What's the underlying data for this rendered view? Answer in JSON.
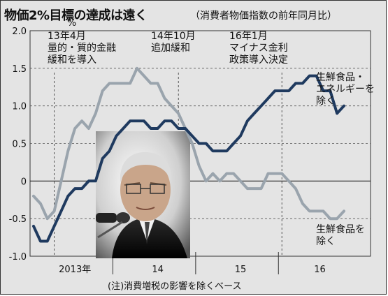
{
  "title": "物価2%目標の達成は遠く",
  "subtitle": "（消費者物価指数の前年同月比）",
  "unit": "%",
  "note": "(注)消費増税の影響を除くベース",
  "annotations": {
    "a2013": [
      "13年4月",
      "量的・質的金融",
      "緩和を導入"
    ],
    "a2014": [
      "14年10月",
      "追加緩和"
    ],
    "a2016": [
      "16年1月",
      "マイナス金利",
      "政策導入決定"
    ]
  },
  "colors": {
    "background": "#e4e4e4",
    "core": "#1f3a5f",
    "headline": "#9aa4ad"
  },
  "photo": "portrait-photo",
  "chart_data": {
    "type": "line",
    "ylim": [
      -1.0,
      2.0
    ],
    "yticks": [
      "2.0",
      "1.5",
      "1.0",
      "0.5",
      "0",
      "-0.5",
      "-1.0"
    ],
    "ytick_values": [
      2.0,
      1.5,
      1.0,
      0.5,
      0,
      -0.5,
      -1.0
    ],
    "xticks": [
      "2013年",
      "14",
      "15",
      "16"
    ],
    "grid": "horizontal dashed at 0.5 steps, solid zero line",
    "events": [
      "2013-04",
      "2014-10",
      "2016-01"
    ],
    "x": [
      "2013-01",
      "2013-02",
      "2013-03",
      "2013-04",
      "2013-05",
      "2013-06",
      "2013-07",
      "2013-08",
      "2013-09",
      "2013-10",
      "2013-11",
      "2013-12",
      "2014-01",
      "2014-02",
      "2014-03",
      "2014-04",
      "2014-05",
      "2014-06",
      "2014-07",
      "2014-08",
      "2014-09",
      "2014-10",
      "2014-11",
      "2014-12",
      "2015-01",
      "2015-02",
      "2015-03",
      "2015-04",
      "2015-05",
      "2015-06",
      "2015-07",
      "2015-08",
      "2015-09",
      "2015-10",
      "2015-11",
      "2015-12",
      "2016-01",
      "2016-02",
      "2016-03",
      "2016-04",
      "2016-05",
      "2016-06",
      "2016-07",
      "2016-08",
      "2016-09",
      "2016-10"
    ],
    "series": [
      {
        "name": "生鮮食品・エネルギーを除く",
        "values": [
          -0.6,
          -0.8,
          -0.8,
          -0.6,
          -0.4,
          -0.2,
          -0.1,
          -0.1,
          0.0,
          0.0,
          0.3,
          0.4,
          0.6,
          0.7,
          0.8,
          0.8,
          0.8,
          0.7,
          0.7,
          0.8,
          0.8,
          0.7,
          0.7,
          0.6,
          0.5,
          0.5,
          0.4,
          0.4,
          0.4,
          0.5,
          0.6,
          0.8,
          0.9,
          1.0,
          1.1,
          1.2,
          1.2,
          1.2,
          1.3,
          1.3,
          1.4,
          1.4,
          1.2,
          1.2,
          0.9,
          1.0
        ]
      },
      {
        "name": "生鮮食品を除く",
        "values": [
          -0.2,
          -0.3,
          -0.5,
          -0.4,
          0.0,
          0.4,
          0.7,
          0.8,
          0.7,
          0.9,
          1.2,
          1.3,
          1.3,
          1.3,
          1.3,
          1.5,
          1.4,
          1.3,
          1.3,
          1.1,
          1.0,
          0.9,
          0.7,
          0.5,
          0.2,
          0.0,
          0.1,
          0.0,
          0.1,
          0.1,
          0.0,
          -0.1,
          -0.1,
          -0.1,
          0.1,
          0.1,
          0.1,
          0.0,
          -0.1,
          -0.3,
          -0.4,
          -0.4,
          -0.4,
          -0.5,
          -0.5,
          -0.4
        ]
      }
    ]
  },
  "series_labels": {
    "core": [
      "生鮮食品・",
      "エネルギーを",
      "除く"
    ],
    "headline": [
      "生鮮食品を",
      "除く"
    ]
  }
}
